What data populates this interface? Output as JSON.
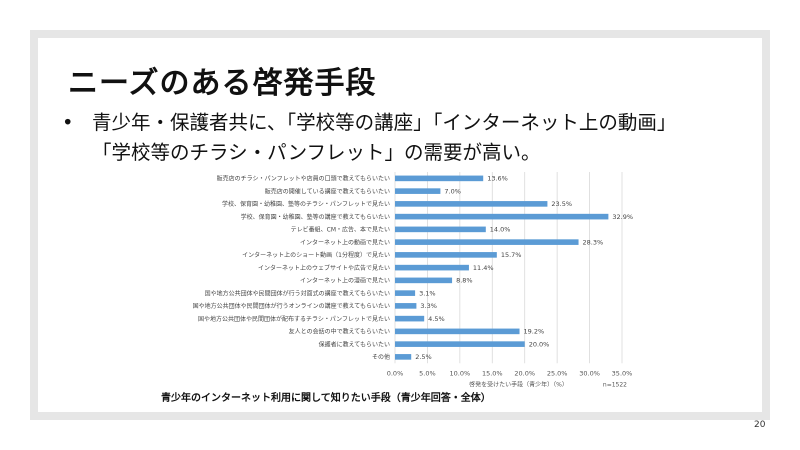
{
  "slide": {
    "title": "ニーズのある啓発手段",
    "bullet_line1": "青少年・保護者共に、「学校等の講座」「インターネット上の動画」",
    "bullet_line2": "「学校等のチラシ・パンフレット」の需要が高い。",
    "caption": "青少年のインターネット利用に関して知りたい手段（青少年回答・全体）",
    "page_number": "20"
  },
  "chart_data": {
    "type": "bar",
    "orientation": "horizontal",
    "categories": [
      "販売店のチラシ・パンフレットや店員の口頭で教えてもらいたい",
      "販売店の開催している講座で教えてもらいたい",
      "学校、保育園・幼稚園、塾等のチラシ・パンフレットで見たい",
      "学校、保育園・幼稚園、塾等の講座で教えてもらいたい",
      "テレビ番組、CM・広告、本で見たい",
      "インターネット上の動画で見たい",
      "インターネット上のショート動画（1分程度）で見たい",
      "インターネット上のウェブサイトや広告で見たい",
      "インターネット上の漫画で見たい",
      "国や地方公共団体や民間団体が行う対面式の講座で教えてもらいたい",
      "国や地方公共団体や民間団体が行うオンラインの講座で教えてもらいたい",
      "国や地方公共団体や民間団体が配布するチラシ・パンフレットで見たい",
      "友人との会話の中で教えてもらいたい",
      "保護者に教えてもらいたい",
      "その他"
    ],
    "values": [
      13.6,
      7.0,
      23.5,
      32.9,
      14.0,
      28.3,
      15.7,
      11.4,
      8.8,
      3.1,
      3.3,
      4.5,
      19.2,
      20.0,
      2.5
    ],
    "data_labels": [
      "13.6%",
      "7.0%",
      "23.5%",
      "32.9%",
      "14.0%",
      "28.3%",
      "15.7%",
      "11.4%",
      "8.8%",
      "3.1%",
      "3.3%",
      "4.5%",
      "19.2%",
      "20.0%",
      "2.5%"
    ],
    "xlim": [
      0,
      35
    ],
    "xticks": [
      "0.0%",
      "5.0%",
      "10.0%",
      "15.0%",
      "20.0%",
      "25.0%",
      "30.0%",
      "35.0%"
    ],
    "xlabel": "啓発を受けたい手段（青少年）（%）",
    "note": "n=1522",
    "grid": true,
    "bar_color": "#5b9bd5"
  }
}
